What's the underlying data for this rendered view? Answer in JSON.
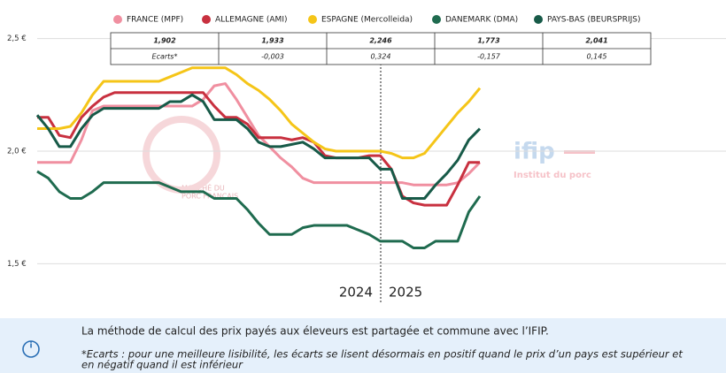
{
  "chart_data": {
    "type": "line",
    "categories": [
      null,
      null,
      null,
      null,
      null,
      null,
      null,
      null,
      null,
      null,
      null,
      null,
      null,
      null,
      null,
      null,
      null,
      null,
      null,
      null,
      null,
      null,
      null,
      null,
      null,
      null,
      null,
      null,
      null,
      null,
      null,
      null,
      null,
      null,
      null,
      null,
      null,
      null,
      null,
      null,
      null
    ],
    "series": [
      {
        "name": "FRANCE (MPF)",
        "color": "#f08fa0",
        "values": [
          1.95,
          1.95,
          1.95,
          1.95,
          2.05,
          2.18,
          2.2,
          2.2,
          2.2,
          2.2,
          2.2,
          2.2,
          2.2,
          2.2,
          2.2,
          2.23,
          2.29,
          2.3,
          2.23,
          2.15,
          2.07,
          2.02,
          1.97,
          1.93,
          1.88,
          1.86,
          1.86,
          1.86,
          1.86,
          1.86,
          1.86,
          1.86,
          1.86,
          1.86,
          1.85,
          1.85,
          1.85,
          1.85,
          1.86,
          1.9,
          1.95
        ]
      },
      {
        "name": "ALLEMAGNE (AMI)",
        "color": "#c8303f",
        "values": [
          2.15,
          2.15,
          2.07,
          2.06,
          2.15,
          2.2,
          2.24,
          2.26,
          2.26,
          2.26,
          2.26,
          2.26,
          2.26,
          2.26,
          2.26,
          2.26,
          2.2,
          2.15,
          2.15,
          2.12,
          2.06,
          2.06,
          2.06,
          2.05,
          2.06,
          2.04,
          1.98,
          1.97,
          1.97,
          1.97,
          1.98,
          1.98,
          1.92,
          1.8,
          1.77,
          1.76,
          1.76,
          1.76,
          1.85,
          1.95,
          1.95
        ]
      },
      {
        "name": "ESPAGNE (Mercolleida)",
        "color": "#f5c518",
        "values": [
          2.1,
          2.1,
          2.1,
          2.11,
          2.17,
          2.25,
          2.31,
          2.31,
          2.31,
          2.31,
          2.31,
          2.31,
          2.33,
          2.35,
          2.37,
          2.37,
          2.37,
          2.37,
          2.34,
          2.3,
          2.27,
          2.23,
          2.18,
          2.12,
          2.08,
          2.04,
          2.01,
          2.0,
          2.0,
          2.0,
          2.0,
          2.0,
          1.99,
          1.97,
          1.97,
          1.99,
          2.05,
          2.11,
          2.17,
          2.22,
          2.28
        ]
      },
      {
        "name": "DANEMARK (DMA)",
        "color": "#1f6b4f",
        "values": [
          1.91,
          1.88,
          1.82,
          1.79,
          1.79,
          1.82,
          1.86,
          1.86,
          1.86,
          1.86,
          1.86,
          1.86,
          1.84,
          1.82,
          1.82,
          1.82,
          1.79,
          1.79,
          1.79,
          1.74,
          1.68,
          1.63,
          1.63,
          1.63,
          1.66,
          1.67,
          1.67,
          1.67,
          1.67,
          1.65,
          1.63,
          1.6,
          1.6,
          1.6,
          1.57,
          1.57,
          1.6,
          1.6,
          1.6,
          1.73,
          1.8
        ]
      },
      {
        "name": "PAYS-BAS (BEURSPRIJS)",
        "color": "#175a48",
        "values": [
          2.16,
          2.1,
          2.02,
          2.02,
          2.1,
          2.16,
          2.19,
          2.19,
          2.19,
          2.19,
          2.19,
          2.19,
          2.22,
          2.22,
          2.25,
          2.22,
          2.14,
          2.14,
          2.14,
          2.1,
          2.04,
          2.02,
          2.02,
          2.03,
          2.04,
          2.01,
          1.97,
          1.97,
          1.97,
          1.97,
          1.97,
          1.92,
          1.92,
          1.79,
          1.79,
          1.79,
          1.85,
          1.9,
          1.96,
          2.05,
          2.1
        ]
      }
    ],
    "ylim": [
      1.47,
      2.53
    ],
    "yticks": [
      {
        "value": 1.5,
        "label": "1,5 €"
      },
      {
        "value": 2.0,
        "label": "2,0 €"
      },
      {
        "value": 2.5,
        "label": "2,5 €"
      }
    ],
    "grid": true,
    "table": {
      "rows": [
        [
          "1,902",
          "1,933",
          "2,246",
          "1,773",
          "2,041"
        ],
        [
          "Ecarts*",
          "-0,003",
          "0,324",
          "-0,157",
          "0,145"
        ]
      ]
    },
    "annotations": [
      "2024",
      "2025"
    ],
    "watermarks": [
      "MARCHÉ DU",
      "PORC FRANÇAIS",
      "ifip",
      "Institut du porc"
    ]
  },
  "info": {
    "text": "La méthode de calcul des prix payés aux éleveurs est partagée et commune avec l’IFIP.",
    "note": [
      "*Ecarts : pour une meilleure lisibilité, les écarts se lisent désormais en positif quand le prix d’un pays est supérieur et",
      "en négatif quand il est inférieur"
    ]
  }
}
